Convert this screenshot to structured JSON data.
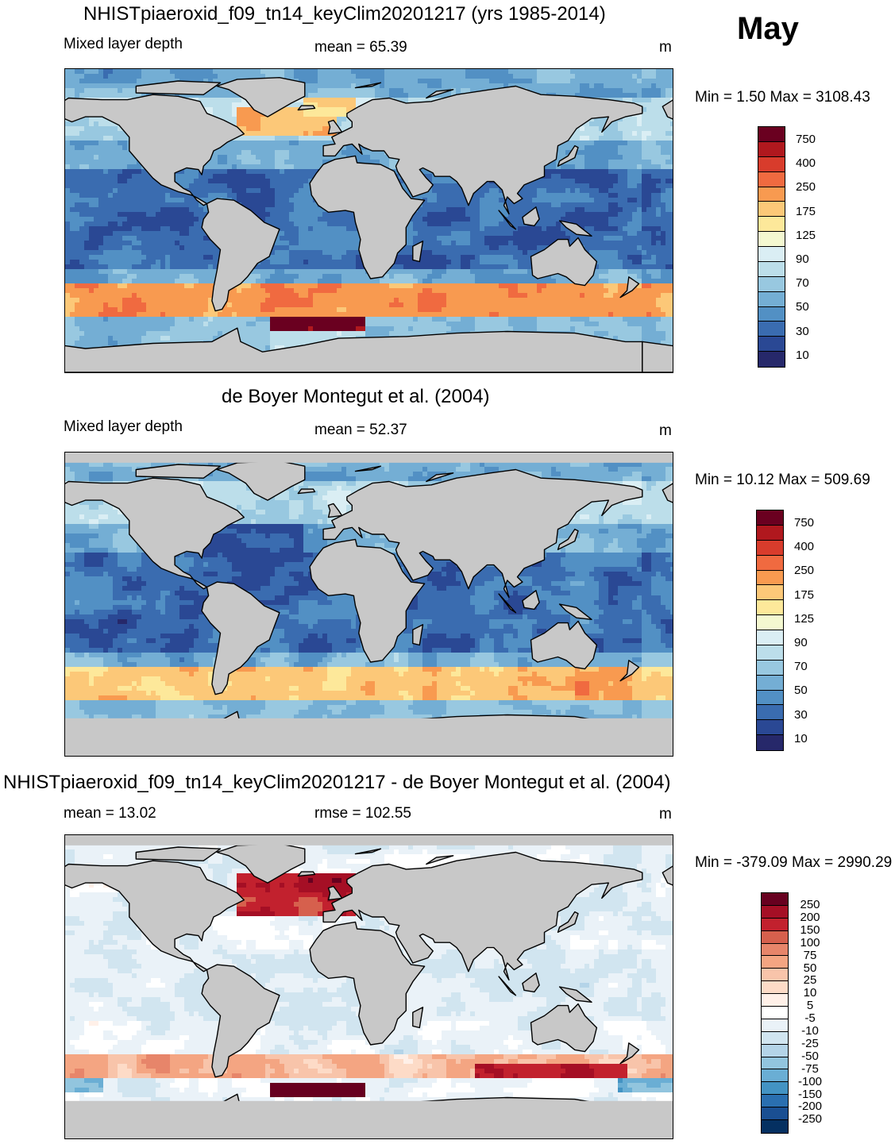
{
  "month": "May",
  "panels": [
    {
      "title": "NHISTpiaeroxid_f09_tn14_keyClim20201217 (yrs 1985-2014)",
      "left_label": "Mixed layer depth",
      "center_label": "mean =  65.39",
      "units": "m",
      "minmax": "Min =   1.50 Max = 3108.43",
      "colorbar_labels": [
        "750",
        "400",
        "250",
        "175",
        "125",
        "90",
        "70",
        "50",
        "30",
        "10"
      ]
    },
    {
      "title": "de Boyer Montegut et al. (2004)",
      "left_label": "Mixed layer depth",
      "center_label": "mean =  52.37",
      "units": "m",
      "minmax": "Min =  10.12 Max = 509.69",
      "colorbar_labels": [
        "750",
        "400",
        "250",
        "175",
        "125",
        "90",
        "70",
        "50",
        "30",
        "10"
      ]
    },
    {
      "title": "NHISTpiaeroxid_f09_tn14_keyClim20201217 - de Boyer Montegut et al. (2004)",
      "left_label": "mean =  13.02",
      "center_label": "rmse = 102.55",
      "units": "m",
      "minmax": "Min = -379.09 Max = 2990.29",
      "colorbar_labels": [
        "250",
        "200",
        "150",
        "100",
        "75",
        "50",
        "25",
        "10",
        "5",
        "-5",
        "-10",
        "-25",
        "-50",
        "-75",
        "-100",
        "-150",
        "-200",
        "-250"
      ]
    }
  ],
  "colors": {
    "land": "#c8c8c8",
    "seq": [
      "#6a0020",
      "#b0181e",
      "#d83c2c",
      "#f06a40",
      "#f89a50",
      "#fcc878",
      "#fde89a",
      "#f4f8d0",
      "#daeef4",
      "#bcdeea",
      "#98c8e0",
      "#74aed4",
      "#5290c4",
      "#3a6cb0",
      "#2a4894",
      "#26286a"
    ],
    "div": [
      "#67001f",
      "#a50f25",
      "#c2212e",
      "#d6604d",
      "#e7856a",
      "#f4a582",
      "#f8c4aa",
      "#fddbc7",
      "#fff0e8",
      "#ffffff",
      "#eaf2f8",
      "#d1e5f0",
      "#b4d4e8",
      "#92c5de",
      "#6aaed4",
      "#4393c3",
      "#2a6fb0",
      "#1a4f92",
      "#053061"
    ]
  },
  "chart_data": [
    {
      "type": "heatmap",
      "title": "NHISTpiaeroxid_f09_tn14_keyClim20201217 (yrs 1985-2014)",
      "variable": "Mixed layer depth",
      "units": "m",
      "mean": 65.39,
      "min": 1.5,
      "max": 3108.43,
      "contour_levels": [
        10,
        20,
        30,
        40,
        50,
        60,
        70,
        80,
        90,
        100,
        125,
        150,
        175,
        200,
        250,
        300,
        400,
        500,
        750
      ],
      "features": [
        {
          "region": "North Atlantic / Labrador Sea",
          "approx_value": 300
        },
        {
          "region": "Southern Ocean 40-55S band",
          "approx_value": 150
        },
        {
          "region": "Weddell Sea",
          "approx_value": 750
        },
        {
          "region": "Tropical oceans",
          "approx_value": 20
        }
      ]
    },
    {
      "type": "heatmap",
      "title": "de Boyer Montegut et al. (2004)",
      "variable": "Mixed layer depth",
      "units": "m",
      "mean": 52.37,
      "min": 10.12,
      "max": 509.69,
      "contour_levels": [
        10,
        20,
        30,
        40,
        50,
        60,
        70,
        80,
        90,
        100,
        125,
        150,
        175,
        200,
        250,
        300,
        400,
        500,
        750
      ],
      "features": [
        {
          "region": "Southern Ocean 40-55S band",
          "approx_value": 150
        },
        {
          "region": "Tropical oceans",
          "approx_value": 25
        },
        {
          "region": "Mid-latitude oceans",
          "approx_value": 50
        }
      ]
    },
    {
      "type": "heatmap",
      "title": "NHISTpiaeroxid_f09_tn14_keyClim20201217 - de Boyer Montegut et al. (2004)",
      "units": "m",
      "mean": 13.02,
      "rmse": 102.55,
      "min": -379.09,
      "max": 2990.29,
      "contour_levels": [
        -250,
        -200,
        -150,
        -100,
        -75,
        -50,
        -25,
        -10,
        -5,
        5,
        10,
        25,
        50,
        75,
        100,
        150,
        200,
        250
      ],
      "features": [
        {
          "region": "North Atlantic / Labrador Sea",
          "approx_value": 250
        },
        {
          "region": "Southern Indian / Pacific sector 50S",
          "approx_value": 200
        },
        {
          "region": "Weddell Sea",
          "approx_value": 250
        },
        {
          "region": "Tropical oceans",
          "approx_value": -10
        }
      ]
    }
  ]
}
